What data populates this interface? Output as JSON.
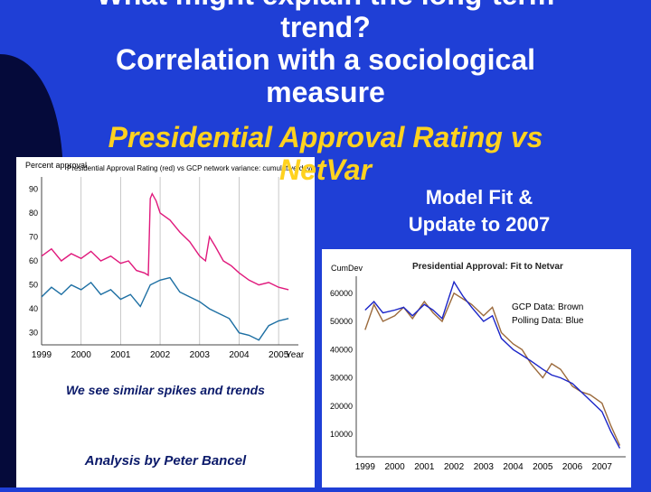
{
  "slide": {
    "title_lines": [
      "What might explain the long-term",
      "trend?",
      "Correlation with a sociological",
      "measure"
    ],
    "subtitle_lines": [
      "Presidential Approval Rating vs",
      "NetVar"
    ],
    "side_text": [
      "Model Fit &",
      "Update to 2007"
    ],
    "caption_similar": "We see similar spikes and trends",
    "caption_analysis": "Analysis by Peter Bancel",
    "colors": {
      "background": "#1f3fd6",
      "subtitle": "#ffd21f",
      "approval_series": "#e0197c",
      "gcp_series_left": "#1d6fa3",
      "gcp_series_right": "#9b6a3c",
      "poll_series_right": "#1a24c8"
    }
  },
  "chart_data": [
    {
      "type": "line",
      "title": "Presidential Approval Rating (red) vs GCP network variance: cumulative deviation",
      "ylabel": "Percent approval",
      "xlabel": "Year",
      "x_ticks": [
        "1999",
        "2000",
        "2001",
        "2002",
        "2003",
        "2004",
        "2005"
      ],
      "y_ticks": [
        "30",
        "40",
        "50",
        "60",
        "70",
        "80",
        "90"
      ],
      "ylim": [
        25,
        95
      ],
      "xlim": [
        1999,
        2005.5
      ],
      "series": [
        {
          "name": "Presidential Approval",
          "color": "#e0197c",
          "x": [
            1999.0,
            1999.25,
            1999.5,
            1999.75,
            2000.0,
            2000.25,
            2000.5,
            2000.75,
            2001.0,
            2001.2,
            2001.4,
            2001.6,
            2001.7,
            2001.75,
            2001.8,
            2001.9,
            2002.0,
            2002.25,
            2002.5,
            2002.75,
            2003.0,
            2003.15,
            2003.25,
            2003.4,
            2003.6,
            2003.8,
            2004.0,
            2004.25,
            2004.5,
            2004.75,
            2005.0,
            2005.25
          ],
          "y": [
            62,
            65,
            60,
            63,
            61,
            64,
            60,
            62,
            59,
            60,
            56,
            55,
            54,
            86,
            88,
            85,
            80,
            77,
            72,
            68,
            62,
            60,
            70,
            66,
            60,
            58,
            55,
            52,
            50,
            51,
            49,
            48
          ]
        },
        {
          "name": "GCP network variance",
          "color": "#1d6fa3",
          "x": [
            1999.0,
            1999.25,
            1999.5,
            1999.75,
            2000.0,
            2000.25,
            2000.5,
            2000.75,
            2001.0,
            2001.25,
            2001.5,
            2001.75,
            2002.0,
            2002.25,
            2002.5,
            2002.75,
            2003.0,
            2003.25,
            2003.5,
            2003.75,
            2004.0,
            2004.25,
            2004.5,
            2004.75,
            2005.0,
            2005.25
          ],
          "y": [
            45,
            49,
            46,
            50,
            48,
            51,
            46,
            48,
            44,
            46,
            41,
            50,
            52,
            53,
            47,
            45,
            43,
            40,
            38,
            36,
            30,
            29,
            27,
            33,
            35,
            36
          ]
        }
      ]
    },
    {
      "type": "line",
      "title": "Presidential Approval: Fit to Netvar",
      "ylabel": "CumDev",
      "x_ticks": [
        "1999",
        "2000",
        "2001",
        "2002",
        "2003",
        "2004",
        "2005",
        "2006",
        "2007"
      ],
      "y_ticks": [
        "10000",
        "20000",
        "30000",
        "40000",
        "50000",
        "60000"
      ],
      "ylim": [
        2000,
        66000
      ],
      "xlim": [
        1998.7,
        2007.8
      ],
      "legend": [
        "GCP Data: Brown",
        "Polling Data: Blue"
      ],
      "legend_position": "top-right",
      "series": [
        {
          "name": "GCP Data",
          "color": "#9b6a3c",
          "x": [
            1999.0,
            1999.3,
            1999.6,
            2000.0,
            2000.3,
            2000.6,
            2001.0,
            2001.3,
            2001.6,
            2002.0,
            2002.3,
            2002.6,
            2003.0,
            2003.3,
            2003.6,
            2004.0,
            2004.3,
            2004.6,
            2005.0,
            2005.3,
            2005.6,
            2006.0,
            2006.3,
            2006.6,
            2007.0,
            2007.3,
            2007.6
          ],
          "y": [
            47000,
            56000,
            50000,
            52000,
            55000,
            51000,
            57000,
            53000,
            50000,
            60000,
            58000,
            56000,
            52000,
            55000,
            46000,
            42000,
            40000,
            35000,
            30000,
            35000,
            33000,
            27000,
            25000,
            24000,
            21000,
            13000,
            6000
          ]
        },
        {
          "name": "Polling Data",
          "color": "#1a24c8",
          "x": [
            1999.0,
            1999.3,
            1999.6,
            2000.0,
            2000.3,
            2000.6,
            2001.0,
            2001.3,
            2001.6,
            2002.0,
            2002.3,
            2002.6,
            2003.0,
            2003.3,
            2003.6,
            2004.0,
            2004.3,
            2004.6,
            2005.0,
            2005.3,
            2005.6,
            2006.0,
            2006.3,
            2006.6,
            2007.0,
            2007.3,
            2007.6
          ],
          "y": [
            54000,
            57000,
            53000,
            54000,
            55000,
            52000,
            56000,
            54000,
            51000,
            64000,
            59000,
            55000,
            50000,
            52000,
            44000,
            40000,
            38000,
            36000,
            33000,
            31000,
            30000,
            28000,
            25000,
            22000,
            18000,
            11000,
            5000
          ]
        }
      ]
    }
  ]
}
